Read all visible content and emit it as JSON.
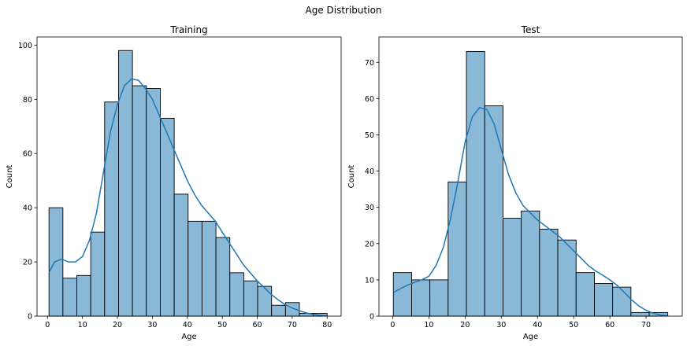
{
  "figure": {
    "suptitle": "Age Distribution"
  },
  "chart_data": [
    {
      "type": "bar",
      "subtype": "histogram_with_kde",
      "title": "Training",
      "xlabel": "Age",
      "ylabel": "Count",
      "xlim": [
        -3,
        84
      ],
      "ylim": [
        0,
        103
      ],
      "xticks": [
        0,
        10,
        20,
        30,
        40,
        50,
        60,
        70,
        80
      ],
      "yticks": [
        0,
        20,
        40,
        60,
        80,
        100
      ],
      "bin_edges": [
        0.42,
        4.4,
        8.38,
        12.36,
        16.34,
        20.32,
        24.3,
        28.28,
        32.26,
        36.24,
        40.22,
        44.2,
        48.18,
        52.16,
        56.14,
        60.12,
        64.1,
        68.08,
        72.06,
        76.04,
        80.0
      ],
      "counts": [
        40,
        14,
        15,
        31,
        79,
        98,
        85,
        84,
        73,
        45,
        35,
        35,
        29,
        16,
        13,
        11,
        4,
        5,
        1,
        1
      ],
      "kde": {
        "x": [
          0.4,
          2,
          4,
          6,
          8,
          10,
          12,
          14,
          16,
          18,
          20,
          22,
          24,
          26,
          28,
          30,
          32,
          34,
          36,
          38,
          40,
          42,
          44,
          46,
          48,
          50,
          52,
          54,
          56,
          58,
          60,
          62,
          64,
          66,
          68,
          70,
          72,
          74,
          76,
          78,
          80
        ],
        "y": [
          16,
          20,
          21,
          20,
          20,
          22,
          28,
          38,
          53,
          68,
          78,
          85,
          87.5,
          87,
          84,
          80,
          74,
          68,
          62,
          56,
          50,
          45,
          41,
          38,
          35,
          31,
          27,
          23,
          19,
          16,
          13,
          10.5,
          8,
          6,
          4.2,
          3,
          2,
          1.2,
          0.6,
          0.3,
          0.1
        ]
      },
      "bar_color": "#8ab9d8",
      "line_color": "#1f77b4",
      "grid": false
    },
    {
      "type": "bar",
      "subtype": "histogram_with_kde",
      "title": "Test",
      "xlabel": "Age",
      "ylabel": "Count",
      "xlim": [
        -3.8,
        80
      ],
      "ylim": [
        0,
        77
      ],
      "xticks": [
        0,
        10,
        20,
        30,
        40,
        50,
        60,
        70
      ],
      "yticks": [
        0,
        10,
        20,
        30,
        40,
        50,
        60,
        70
      ],
      "bin_edges": [
        0.17,
        5.22,
        10.27,
        15.32,
        20.37,
        25.42,
        30.47,
        35.52,
        40.57,
        45.62,
        50.67,
        55.72,
        60.77,
        65.82,
        70.87,
        76.0
      ],
      "counts": [
        12,
        10,
        10,
        37,
        73,
        58,
        27,
        29,
        24,
        21,
        12,
        9,
        8,
        1,
        1
      ],
      "kde": {
        "x": [
          0.2,
          2,
          4,
          6,
          8,
          10,
          12,
          14,
          16,
          18,
          20,
          22,
          24,
          26,
          28,
          30,
          32,
          34,
          36,
          38,
          40,
          42,
          44,
          46,
          48,
          50,
          52,
          54,
          56,
          58,
          60,
          62,
          64,
          66,
          68,
          70,
          72,
          74,
          76
        ],
        "y": [
          6.5,
          7.5,
          8.5,
          9.3,
          10,
          11,
          14,
          19,
          27,
          37,
          48,
          55,
          57.5,
          57,
          53,
          46,
          39,
          34,
          30.5,
          28.5,
          26.5,
          25,
          23.5,
          22,
          20,
          18,
          16,
          14,
          12.5,
          11.3,
          10,
          8.5,
          6.5,
          4.5,
          2.8,
          1.6,
          0.8,
          0.3,
          0.1
        ]
      },
      "bar_color": "#8ab9d8",
      "line_color": "#1f77b4",
      "grid": false
    }
  ]
}
